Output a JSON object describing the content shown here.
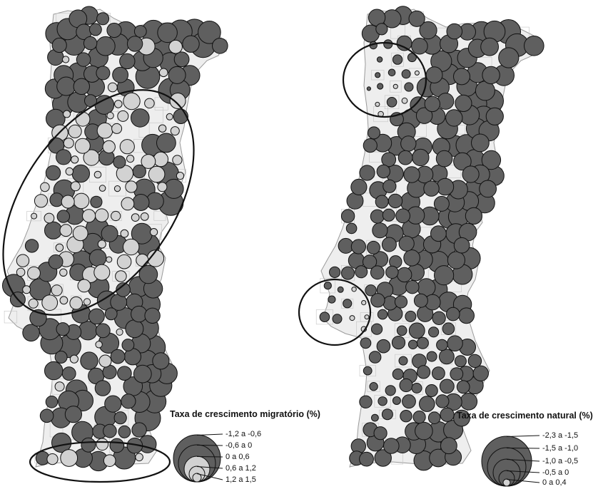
{
  "colors": {
    "background": "#ffffff",
    "land": "#eeeeee",
    "border": "#9a9a9a",
    "dark_bubble": "#5f5f5f",
    "light_bubble": "#d2d2d2",
    "bubble_outline": "#111111",
    "highlight_ellipse": "#111111"
  },
  "maps": [
    {
      "legend": {
        "title": "Taxa de crescimento migratório (%)",
        "classes": [
          {
            "label": "-1,2 a -0,6",
            "tone": "dark"
          },
          {
            "label": "-0,6 a 0",
            "tone": "dark"
          },
          {
            "label": "0 a 0,6",
            "tone": "light"
          },
          {
            "label": "0,6 a 1,2",
            "tone": "light"
          },
          {
            "label": "1,2 a 1,5",
            "tone": "light"
          }
        ]
      }
    },
    {
      "legend": {
        "title": "Taxa de crescimento natural (%)",
        "classes": [
          {
            "label": "-2,3 a -1,5",
            "tone": "dark"
          },
          {
            "label": "-1,5 a -1,0",
            "tone": "dark"
          },
          {
            "label": "-1,0 a -0,5",
            "tone": "dark"
          },
          {
            "label": "-0,5 a 0",
            "tone": "dark"
          },
          {
            "label": "0 a 0,4",
            "tone": "light"
          }
        ]
      }
    }
  ]
}
